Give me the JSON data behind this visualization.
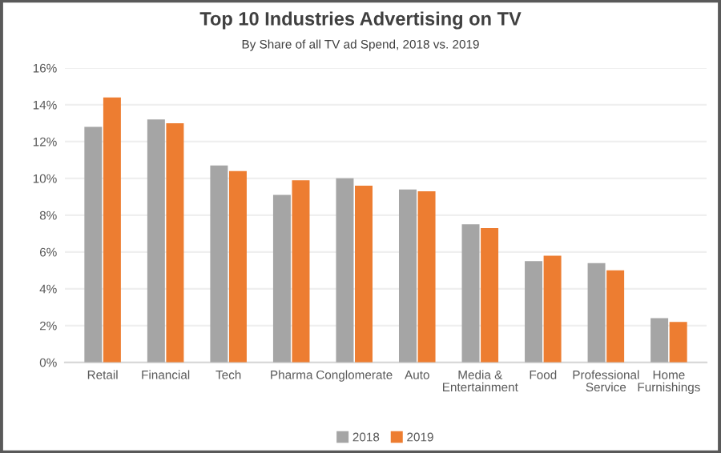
{
  "chart_data": {
    "type": "bar",
    "title": "Top 10 Industries Advertising on TV",
    "subtitle": "By Share of all TV ad Spend, 2018 vs. 2019",
    "categories": [
      "Retail",
      "Financial",
      "Tech",
      "Pharma",
      "Conglomerate",
      "Auto",
      "Media &\nEntertainment",
      "Food",
      "Professional\nService",
      "Home\nFurnishings"
    ],
    "series": [
      {
        "name": "2018",
        "color": "#a5a5a5",
        "values": [
          12.8,
          13.2,
          10.7,
          9.1,
          10.0,
          9.4,
          7.5,
          5.5,
          5.4,
          2.4
        ]
      },
      {
        "name": "2019",
        "color": "#ed7d31",
        "values": [
          14.4,
          13.0,
          10.4,
          9.9,
          9.6,
          9.3,
          7.3,
          5.8,
          5.0,
          2.2
        ]
      }
    ],
    "ylim": [
      0,
      16
    ],
    "yticks": [
      {
        "value": 0,
        "label": "0%"
      },
      {
        "value": 2,
        "label": "2%"
      },
      {
        "value": 4,
        "label": "4%"
      },
      {
        "value": 6,
        "label": "6%"
      },
      {
        "value": 8,
        "label": "8%"
      },
      {
        "value": 10,
        "label": "10%"
      },
      {
        "value": 12,
        "label": "12%"
      },
      {
        "value": 14,
        "label": "14%"
      },
      {
        "value": 16,
        "label": "16%"
      }
    ],
    "grid": "y",
    "legend": "bottom"
  }
}
